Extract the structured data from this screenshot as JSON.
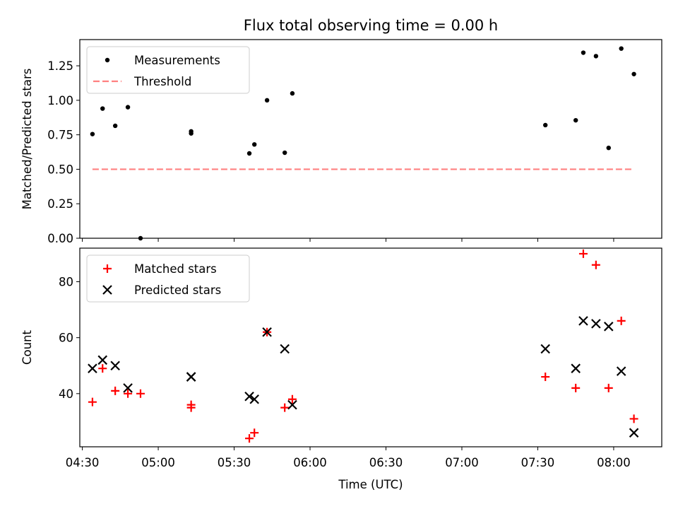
{
  "title": "Flux total observing time = 0.00 h",
  "xlabel": "Time (UTC)",
  "x_ticks": [
    "04:30",
    "05:00",
    "05:30",
    "06:00",
    "06:30",
    "07:00",
    "07:30",
    "08:00"
  ],
  "chart_data": [
    {
      "type": "scatter",
      "ylabel": "Matched/Predicted stars",
      "x_unit": "time of day (HH:MM UTC)",
      "xlim": [
        "04:29",
        "08:19"
      ],
      "ylim": [
        0,
        1.44
      ],
      "y_ticks": [
        "0.00",
        "0.25",
        "0.50",
        "0.75",
        "1.00",
        "1.25"
      ],
      "legend": {
        "placement": "top-left",
        "entries": [
          "Measurements",
          "Threshold"
        ]
      },
      "series": [
        {
          "name": "Measurements",
          "marker": "dot",
          "color": "#000000",
          "points": [
            {
              "x": "04:34",
              "y": 0.755
            },
            {
              "x": "04:38",
              "y": 0.94
            },
            {
              "x": "04:43",
              "y": 0.815
            },
            {
              "x": "04:48",
              "y": 0.95
            },
            {
              "x": "04:53",
              "y": 0.0
            },
            {
              "x": "05:13",
              "y": 0.76
            },
            {
              "x": "05:13",
              "y": 0.775
            },
            {
              "x": "05:36",
              "y": 0.615
            },
            {
              "x": "05:38",
              "y": 0.68
            },
            {
              "x": "05:43",
              "y": 1.0
            },
            {
              "x": "05:50",
              "y": 0.62
            },
            {
              "x": "05:53",
              "y": 1.05
            },
            {
              "x": "07:33",
              "y": 0.82
            },
            {
              "x": "07:45",
              "y": 0.855
            },
            {
              "x": "07:48",
              "y": 1.345
            },
            {
              "x": "07:53",
              "y": 1.32
            },
            {
              "x": "07:58",
              "y": 0.655
            },
            {
              "x": "08:03",
              "y": 1.375
            },
            {
              "x": "08:08",
              "y": 1.19
            }
          ]
        },
        {
          "name": "Threshold",
          "marker": "dashed-line",
          "color": "#ff8080",
          "points": [
            {
              "x": "04:34",
              "y": 0.5
            },
            {
              "x": "08:08",
              "y": 0.5
            }
          ]
        }
      ]
    },
    {
      "type": "scatter",
      "ylabel": "Count",
      "x_unit": "time of day (HH:MM UTC)",
      "xlim": [
        "04:29",
        "08:19"
      ],
      "ylim": [
        21,
        92
      ],
      "y_ticks": [
        "40",
        "60",
        "80"
      ],
      "legend": {
        "placement": "top-left",
        "entries": [
          "Matched stars",
          "Predicted stars"
        ]
      },
      "series": [
        {
          "name": "Matched stars",
          "marker": "plus",
          "color": "#ff0000",
          "points": [
            {
              "x": "04:34",
              "y": 37
            },
            {
              "x": "04:38",
              "y": 49
            },
            {
              "x": "04:43",
              "y": 41
            },
            {
              "x": "04:48",
              "y": 40
            },
            {
              "x": "04:53",
              "y": 40
            },
            {
              "x": "05:13",
              "y": 35
            },
            {
              "x": "05:13",
              "y": 36
            },
            {
              "x": "05:36",
              "y": 24
            },
            {
              "x": "05:38",
              "y": 26
            },
            {
              "x": "05:43",
              "y": 62
            },
            {
              "x": "05:50",
              "y": 35
            },
            {
              "x": "05:53",
              "y": 38
            },
            {
              "x": "07:33",
              "y": 46
            },
            {
              "x": "07:45",
              "y": 42
            },
            {
              "x": "07:48",
              "y": 90
            },
            {
              "x": "07:53",
              "y": 86
            },
            {
              "x": "07:58",
              "y": 42
            },
            {
              "x": "08:03",
              "y": 66
            },
            {
              "x": "08:08",
              "y": 31
            }
          ]
        },
        {
          "name": "Predicted stars",
          "marker": "x",
          "color": "#000000",
          "points": [
            {
              "x": "04:34",
              "y": 49
            },
            {
              "x": "04:38",
              "y": 52
            },
            {
              "x": "04:43",
              "y": 50
            },
            {
              "x": "04:48",
              "y": 42
            },
            {
              "x": "05:13",
              "y": 46
            },
            {
              "x": "05:13",
              "y": 46
            },
            {
              "x": "05:36",
              "y": 39
            },
            {
              "x": "05:38",
              "y": 38
            },
            {
              "x": "05:43",
              "y": 62
            },
            {
              "x": "05:50",
              "y": 56
            },
            {
              "x": "05:53",
              "y": 36
            },
            {
              "x": "07:33",
              "y": 56
            },
            {
              "x": "07:45",
              "y": 49
            },
            {
              "x": "07:48",
              "y": 66
            },
            {
              "x": "07:53",
              "y": 65
            },
            {
              "x": "07:58",
              "y": 64
            },
            {
              "x": "08:03",
              "y": 48
            },
            {
              "x": "08:08",
              "y": 26
            }
          ]
        }
      ]
    }
  ]
}
